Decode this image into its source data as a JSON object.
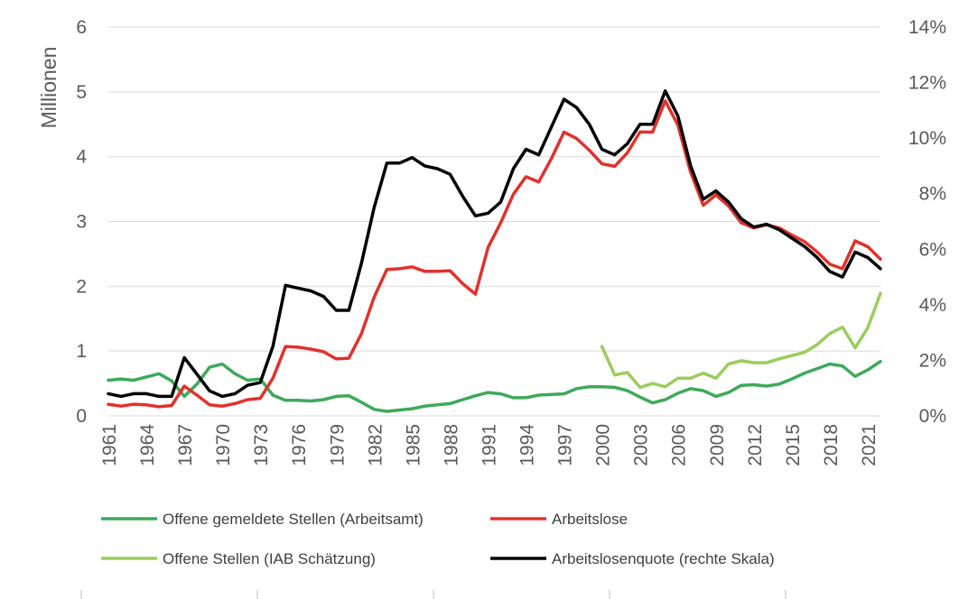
{
  "chart_data": {
    "type": "line",
    "ylabel": "Millionen",
    "ylim": [
      0,
      6
    ],
    "yticks": [
      "0",
      "1",
      "2",
      "3",
      "4",
      "5",
      "6"
    ],
    "y2lim": [
      0,
      14
    ],
    "y2ticks": [
      "0%",
      "2%",
      "4%",
      "6%",
      "8%",
      "10%",
      "12%",
      "14%"
    ],
    "xlim": [
      1961,
      2022
    ],
    "xticks": [
      "1961",
      "1964",
      "1967",
      "1970",
      "1973",
      "1976",
      "1979",
      "1982",
      "1985",
      "1988",
      "1991",
      "1994",
      "1997",
      "2000",
      "2003",
      "2006",
      "2009",
      "2012",
      "2015",
      "2018",
      "2021"
    ],
    "grid": true,
    "legend_position": "bottom",
    "series": [
      {
        "name": "Offene gemeldete Stellen (Arbeitsamt)",
        "axis": "left",
        "color": "#3daa5a",
        "x": [
          1961,
          1962,
          1963,
          1964,
          1965,
          1966,
          1967,
          1968,
          1969,
          1970,
          1971,
          1972,
          1973,
          1974,
          1975,
          1976,
          1977,
          1978,
          1979,
          1980,
          1981,
          1982,
          1983,
          1984,
          1985,
          1986,
          1987,
          1988,
          1989,
          1990,
          1991,
          1992,
          1993,
          1994,
          1995,
          1996,
          1997,
          1998,
          1999,
          2000,
          2001,
          2002,
          2003,
          2004,
          2005,
          2006,
          2007,
          2008,
          2009,
          2010,
          2011,
          2012,
          2013,
          2014,
          2015,
          2016,
          2017,
          2018,
          2019,
          2020,
          2021,
          2022
        ],
        "values": [
          0.55,
          0.57,
          0.55,
          0.6,
          0.65,
          0.54,
          0.3,
          0.49,
          0.75,
          0.8,
          0.65,
          0.55,
          0.57,
          0.32,
          0.24,
          0.24,
          0.23,
          0.25,
          0.3,
          0.31,
          0.21,
          0.1,
          0.07,
          0.09,
          0.11,
          0.15,
          0.17,
          0.19,
          0.25,
          0.31,
          0.36,
          0.34,
          0.28,
          0.28,
          0.32,
          0.33,
          0.34,
          0.42,
          0.45,
          0.45,
          0.44,
          0.39,
          0.29,
          0.2,
          0.25,
          0.35,
          0.42,
          0.39,
          0.3,
          0.36,
          0.47,
          0.48,
          0.46,
          0.49,
          0.57,
          0.66,
          0.73,
          0.8,
          0.77,
          0.61,
          0.71,
          0.84
        ]
      },
      {
        "name": "Arbeitslose",
        "axis": "left",
        "color": "#e2312c",
        "x": [
          1961,
          1962,
          1963,
          1964,
          1965,
          1966,
          1967,
          1968,
          1969,
          1970,
          1971,
          1972,
          1973,
          1974,
          1975,
          1976,
          1977,
          1978,
          1979,
          1980,
          1981,
          1982,
          1983,
          1984,
          1985,
          1986,
          1987,
          1988,
          1989,
          1990,
          1991,
          1992,
          1993,
          1994,
          1995,
          1996,
          1997,
          1998,
          1999,
          2000,
          2001,
          2002,
          2003,
          2004,
          2005,
          2006,
          2007,
          2008,
          2009,
          2010,
          2011,
          2012,
          2013,
          2014,
          2015,
          2016,
          2017,
          2018,
          2019,
          2020,
          2021,
          2022
        ],
        "values": [
          0.18,
          0.15,
          0.18,
          0.17,
          0.14,
          0.16,
          0.46,
          0.32,
          0.17,
          0.15,
          0.19,
          0.25,
          0.27,
          0.58,
          1.07,
          1.06,
          1.03,
          0.99,
          0.88,
          0.89,
          1.27,
          1.83,
          2.26,
          2.27,
          2.3,
          2.23,
          2.23,
          2.24,
          2.04,
          1.88,
          2.6,
          2.98,
          3.42,
          3.69,
          3.61,
          3.97,
          4.38,
          4.28,
          4.1,
          3.89,
          3.85,
          4.06,
          4.38,
          4.38,
          4.86,
          4.49,
          3.76,
          3.25,
          3.41,
          3.24,
          2.98,
          2.9,
          2.95,
          2.9,
          2.79,
          2.69,
          2.53,
          2.34,
          2.27,
          2.7,
          2.61,
          2.42
        ]
      },
      {
        "name": "Offene Stellen (IAB Schätzung)",
        "axis": "left",
        "color": "#9acd5f",
        "x": [
          2000,
          2001,
          2002,
          2003,
          2004,
          2005,
          2006,
          2007,
          2008,
          2009,
          2010,
          2011,
          2012,
          2013,
          2014,
          2015,
          2016,
          2017,
          2018,
          2019,
          2020,
          2021,
          2022
        ],
        "values": [
          1.07,
          0.63,
          0.67,
          0.44,
          0.5,
          0.45,
          0.58,
          0.58,
          0.66,
          0.58,
          0.8,
          0.85,
          0.82,
          0.82,
          0.88,
          0.93,
          0.98,
          1.1,
          1.27,
          1.37,
          1.05,
          1.36,
          1.89
        ]
      },
      {
        "name": "Arbeitslosenquote (rechte Skala)",
        "axis": "right",
        "color": "#000000",
        "x": [
          1961,
          1962,
          1963,
          1964,
          1965,
          1966,
          1967,
          1968,
          1969,
          1970,
          1971,
          1972,
          1973,
          1974,
          1975,
          1976,
          1977,
          1978,
          1979,
          1980,
          1981,
          1982,
          1983,
          1984,
          1985,
          1986,
          1987,
          1988,
          1989,
          1990,
          1991,
          1992,
          1993,
          1994,
          1995,
          1996,
          1997,
          1998,
          1999,
          2000,
          2001,
          2002,
          2003,
          2004,
          2005,
          2006,
          2007,
          2008,
          2009,
          2010,
          2011,
          2012,
          2013,
          2014,
          2015,
          2016,
          2017,
          2018,
          2019,
          2020,
          2021,
          2022
        ],
        "values": [
          0.8,
          0.7,
          0.8,
          0.8,
          0.7,
          0.7,
          2.1,
          1.5,
          0.9,
          0.7,
          0.8,
          1.1,
          1.2,
          2.5,
          4.7,
          4.6,
          4.5,
          4.3,
          3.8,
          3.8,
          5.5,
          7.5,
          9.1,
          9.1,
          9.3,
          9.0,
          8.9,
          8.7,
          7.9,
          7.2,
          7.3,
          7.7,
          8.9,
          9.6,
          9.4,
          10.4,
          11.4,
          11.1,
          10.5,
          9.6,
          9.4,
          9.8,
          10.5,
          10.5,
          11.7,
          10.8,
          9.0,
          7.8,
          8.1,
          7.7,
          7.1,
          6.8,
          6.9,
          6.7,
          6.4,
          6.1,
          5.7,
          5.2,
          5.0,
          5.9,
          5.7,
          5.3
        ]
      }
    ]
  }
}
